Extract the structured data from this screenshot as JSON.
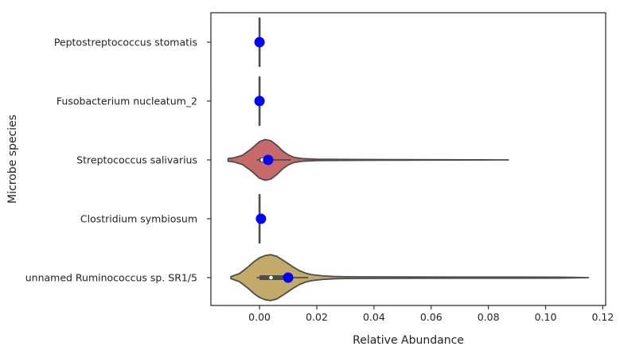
{
  "chart_data": {
    "type": "violin",
    "orientation": "horizontal",
    "xlabel": "Relative Abundance",
    "ylabel": "Microbe species",
    "xlim": [
      -0.017,
      0.121
    ],
    "xticks": [
      0.0,
      0.02,
      0.04,
      0.06,
      0.08,
      0.1,
      0.12
    ],
    "xtick_labels": [
      "0.00",
      "0.02",
      "0.04",
      "0.06",
      "0.08",
      "0.10",
      "0.12"
    ],
    "grid": false,
    "categories": [
      "Peptostreptococcus stomatis",
      "Fusobacterium nucleatum_2",
      "Streptococcus salivarius",
      "Clostridium symbiosum",
      "unnamed Ruminococcus sp. SR1/5"
    ],
    "violins": [
      {
        "color": null,
        "min": 0.0,
        "max": 0.0,
        "median": 0.0,
        "q1": 0.0,
        "q3": 0.0,
        "density": [
          [
            0.0,
            1.0
          ]
        ]
      },
      {
        "color": null,
        "min": 0.0,
        "max": 0.0,
        "median": 0.0,
        "q1": 0.0,
        "q3": 0.0,
        "density": [
          [
            0.0,
            1.0
          ]
        ]
      },
      {
        "color": "#c96a6a",
        "min": -0.011,
        "max": 0.087,
        "median": 0.001,
        "q1": 0.0,
        "q3": 0.003,
        "density": [
          [
            -0.011,
            0.05
          ],
          [
            -0.009,
            0.08
          ],
          [
            -0.006,
            0.18
          ],
          [
            -0.003,
            0.42
          ],
          [
            0.0,
            0.72
          ],
          [
            0.002,
            0.8
          ],
          [
            0.004,
            0.75
          ],
          [
            0.006,
            0.58
          ],
          [
            0.008,
            0.36
          ],
          [
            0.01,
            0.2
          ],
          [
            0.012,
            0.1
          ],
          [
            0.015,
            0.05
          ],
          [
            0.02,
            0.028
          ],
          [
            0.03,
            0.018
          ],
          [
            0.045,
            0.012
          ],
          [
            0.06,
            0.008
          ],
          [
            0.075,
            0.005
          ],
          [
            0.087,
            0.0
          ]
        ]
      },
      {
        "color": null,
        "min": 0.0,
        "max": 0.0,
        "median": 0.0,
        "q1": 0.0,
        "q3": 0.0,
        "density": [
          [
            0.0,
            1.0
          ]
        ]
      },
      {
        "color": "#c4aa69",
        "min": -0.01,
        "max": 0.115,
        "median": 0.004,
        "q1": 0.0,
        "q3": 0.009,
        "density": [
          [
            -0.01,
            0.04
          ],
          [
            -0.007,
            0.16
          ],
          [
            -0.004,
            0.42
          ],
          [
            -0.002,
            0.62
          ],
          [
            0.0,
            0.78
          ],
          [
            0.002,
            0.87
          ],
          [
            0.004,
            0.9
          ],
          [
            0.006,
            0.84
          ],
          [
            0.008,
            0.7
          ],
          [
            0.01,
            0.55
          ],
          [
            0.012,
            0.4
          ],
          [
            0.014,
            0.27
          ],
          [
            0.016,
            0.18
          ],
          [
            0.018,
            0.12
          ],
          [
            0.022,
            0.07
          ],
          [
            0.026,
            0.045
          ],
          [
            0.03,
            0.035
          ],
          [
            0.05,
            0.028
          ],
          [
            0.07,
            0.024
          ],
          [
            0.09,
            0.022
          ],
          [
            0.105,
            0.02
          ],
          [
            0.115,
            0.0
          ]
        ]
      }
    ],
    "mean_markers": {
      "color": "#0000ff",
      "values": [
        0.0,
        0.0,
        0.003,
        0.0005,
        0.01
      ]
    }
  }
}
